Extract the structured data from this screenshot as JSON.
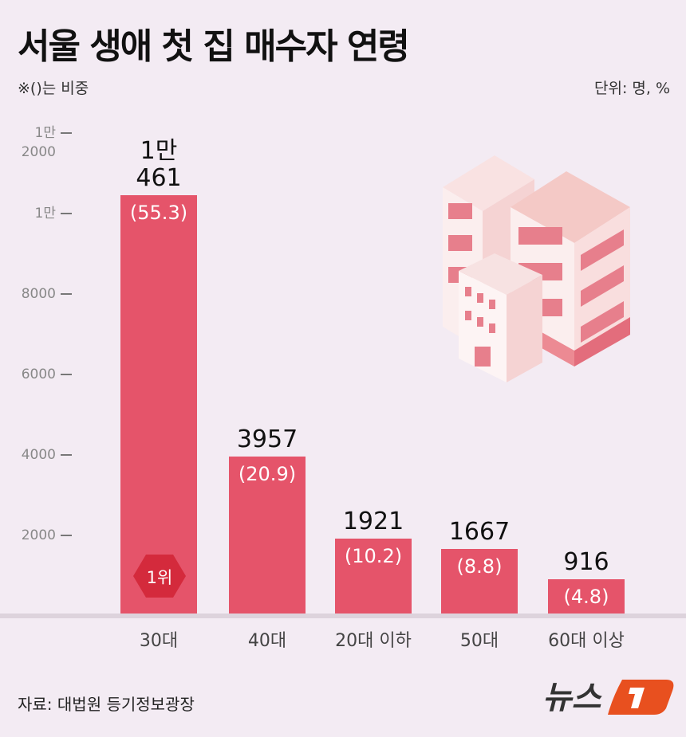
{
  "title": "서울 생애 첫 집 매수자 연령",
  "note": "※()는 비중",
  "unit": "단위: 명, %",
  "source": "자료: 대법원 등기정보광장",
  "logo_text": "뉴스1",
  "rank_badge": "1위",
  "colors": {
    "bar": "#e5546a",
    "badge": "#d42a3c",
    "background": "#f3ebf3",
    "logo": "#e8501f"
  },
  "chart_data": {
    "type": "bar",
    "categories": [
      "30대",
      "40대",
      "20대 이하",
      "50대",
      "60대 이상"
    ],
    "values": [
      10461,
      3957,
      1921,
      1667,
      916
    ],
    "value_labels": [
      [
        "1만",
        "461"
      ],
      [
        "3957"
      ],
      [
        "1921"
      ],
      [
        "1667"
      ],
      [
        "916"
      ]
    ],
    "shares": [
      "(55.3)",
      "(20.9)",
      "(10.2)",
      "(8.8)",
      "(4.8)"
    ],
    "y_ticks": [
      {
        "value": 2000,
        "label": "2000"
      },
      {
        "value": 4000,
        "label": "4000"
      },
      {
        "value": 6000,
        "label": "6000"
      },
      {
        "value": 8000,
        "label": "8000"
      },
      {
        "value": 10000,
        "label": "1만"
      },
      {
        "value": 12000,
        "label": "1만 2000"
      }
    ],
    "ylim": [
      0,
      12000
    ],
    "grid": false
  }
}
